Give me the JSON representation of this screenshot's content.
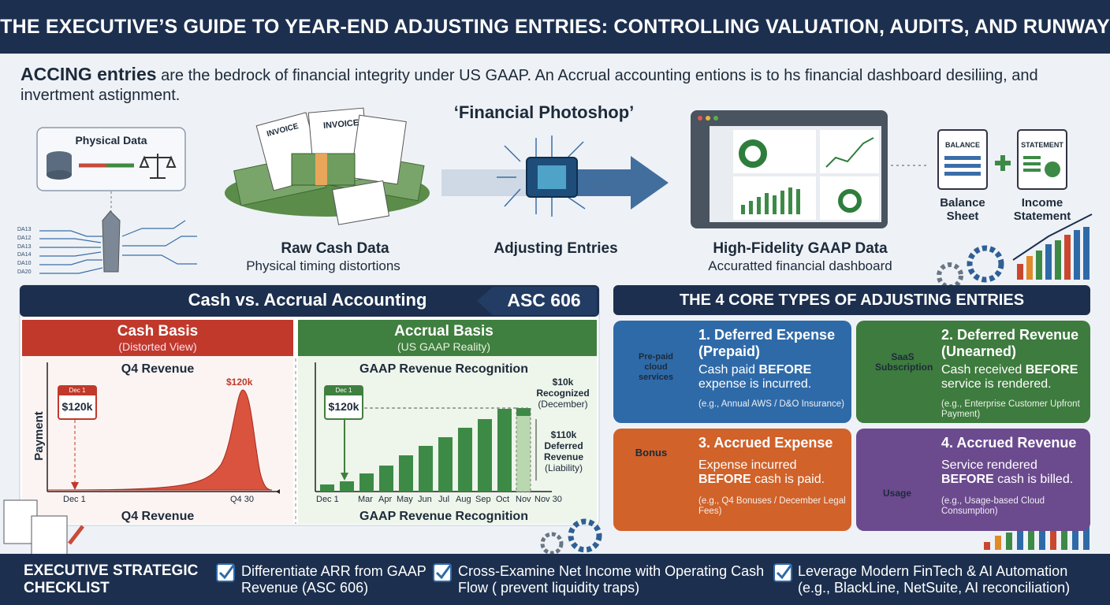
{
  "header": {
    "title": "THE EXECUTIVE’S GUIDE TO YEAR-END ADJUSTING ENTRIES: CONTROLLING VALUATION, AUDITS, AND RUNWAY"
  },
  "intro": {
    "lead": "ACCING entries",
    "text": "are the bedrock of financial integrity under US GAAP. An Accrual accounting entions is to hs financial dashboard desiliing, and invertment astignment."
  },
  "flow": {
    "physical_data": "Physical Data",
    "timeline_labels": [
      "DA13",
      "DA12",
      "DA13",
      "DA14",
      "DA10",
      "DA20"
    ],
    "invoice_labels": [
      "INVOICE",
      "INVOICE"
    ],
    "raw_cash": {
      "title": "Raw Cash Data",
      "subtitle": "Physical timing distortions"
    },
    "photoshop": "‘Financial Photoshop’",
    "adjusting": "Adjusting Entries",
    "gaap": {
      "title": "High-Fidelity GAAP Data",
      "subtitle": "Accuratted financial dashboard"
    },
    "balance_icon": "BALANCE",
    "statement_icon": "STATEMENT",
    "balance_sheet": "Balance Sheet",
    "income_statement": "Income Statement"
  },
  "comparison": {
    "title": "Cash vs. Accrual Accounting",
    "badge": "ASC 606",
    "cash": {
      "title": "Cash Basis",
      "subtitle": "(Distorted View)",
      "chart_title": "Q4 Revenue",
      "y_label": "Payment",
      "calendar_label": "Dec 1",
      "calendar_amount": "$120k",
      "peak_label": "$120k",
      "x_labels": [
        "Dec 1",
        "Q4 30"
      ],
      "footer": "Q4 Revenue"
    },
    "accrual": {
      "title": "Accrual Basis",
      "subtitle": "(US GAAP Reality)",
      "chart_title": "GAAP Revenue Recognition",
      "calendar_label": "Dec 1",
      "calendar_amount": "$120k",
      "x_labels": [
        "Dec 1",
        "Mar",
        "Apr",
        "May",
        "Jun",
        "Jul",
        "Aug",
        "Sep",
        "Oct",
        "Nov",
        "Nov 30"
      ],
      "recognized": [
        "$10k",
        "Recognized",
        "(December)"
      ],
      "deferred": [
        "$110k",
        "Deferred",
        "Revenue",
        "(Liability)"
      ],
      "footer": "GAAP Revenue Recognition"
    }
  },
  "core": {
    "title": "THE 4 CORE TYPES OF ADJUSTING ENTRIES",
    "cards": [
      {
        "title": [
          "1. Deferred Expense",
          "(Prepaid)"
        ],
        "pre": "Cash paid",
        "bold": "BEFORE",
        "post": "expense is incurred.",
        "example": "(e.g., Annual AWS / D&O Insurance)",
        "icon_label": "Pre-paid cloud services"
      },
      {
        "title": [
          "2. Deferred Revenue",
          "(Unearned)"
        ],
        "pre": "Cash received",
        "bold": "BEFORE",
        "post": "service is rendered.",
        "example": "(e.g., Enterprise Customer Upfront Payment)",
        "icon_label": "SaaS Subscription"
      },
      {
        "title": [
          "3. Accrued Expense"
        ],
        "pre": "Expense incurred",
        "bold": "BEFORE",
        "post": "cash is paid.",
        "example": "(e.g., Q4 Bonuses / December Legal Fees)",
        "icon_label": "Bonus"
      },
      {
        "title": [
          "4. Accrued Revenue"
        ],
        "pre": "Service rendered",
        "bold": "BEFORE",
        "post": "cash is billed.",
        "example": "(e.g., Usage-based Cloud Consumption)",
        "icon_label": "Usage"
      }
    ]
  },
  "checklist": {
    "heading": "EXECUTIVE STRATEGIC CHECKLIST",
    "items": [
      "Differentiate ARR from GAAP Revenue (ASC 606)",
      "Cross-Examine Net Income with Operating Cash Flow ( prevent liquidity traps)",
      "Leverage Modern FinTech & AI Automation (e.g., BlackLine, NetSuite, AI reconciliation)"
    ]
  }
}
